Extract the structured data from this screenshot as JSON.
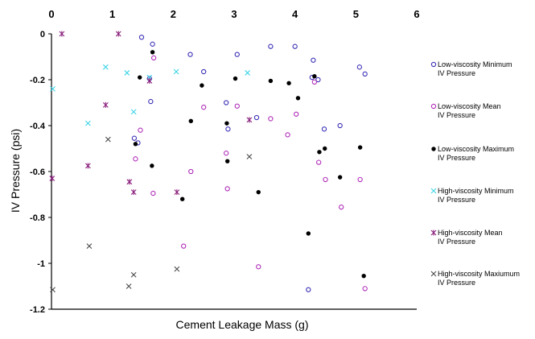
{
  "chart_data": {
    "type": "scatter",
    "title": "",
    "xlabel": "Cement Leakage Mass (g)",
    "ylabel": "IV Pressure (psi)",
    "xlim": [
      0,
      6
    ],
    "ylim": [
      -1.2,
      0
    ],
    "x_ticks": [
      "0",
      "1",
      "2",
      "3",
      "4",
      "5",
      "6"
    ],
    "y_ticks": [
      "0",
      "-0.2",
      "-0.4",
      "-0.6",
      "-0.8",
      "-1",
      "-1.2"
    ],
    "x_ticks_values": [
      0,
      1,
      2,
      3,
      4,
      5,
      6
    ],
    "y_ticks_values": [
      0,
      -0.2,
      -0.4,
      -0.6,
      -0.8,
      -1,
      -1.2
    ],
    "x_axis_position": "top",
    "grid": false,
    "legend_position": "right",
    "series": [
      {
        "name": "Low-viscosity Minimum IV Pressure",
        "marker": "open-circle",
        "color": "#3a2fb5",
        "points": [
          [
            1.48,
            -0.015
          ],
          [
            1.66,
            -0.045
          ],
          [
            2.28,
            -0.09
          ],
          [
            2.5,
            -0.165
          ],
          [
            3.05,
            -0.09
          ],
          [
            3.6,
            -0.055
          ],
          [
            4.0,
            -0.055
          ],
          [
            4.3,
            -0.115
          ],
          [
            4.38,
            -0.2
          ],
          [
            4.28,
            -0.19
          ],
          [
            5.06,
            -0.145
          ],
          [
            5.15,
            -0.175
          ],
          [
            1.61,
            -0.195
          ],
          [
            1.63,
            -0.295
          ],
          [
            2.87,
            -0.3
          ],
          [
            2.9,
            -0.415
          ],
          [
            3.37,
            -0.365
          ],
          [
            4.48,
            -0.415
          ],
          [
            4.74,
            -0.4
          ],
          [
            1.36,
            -0.455
          ],
          [
            1.42,
            -0.475
          ],
          [
            4.22,
            -1.115
          ]
        ]
      },
      {
        "name": "Low-viscosity Mean IV Pressure",
        "marker": "open-circle",
        "color": "#b02ab8",
        "points": [
          [
            1.68,
            -0.105
          ],
          [
            2.5,
            -0.32
          ],
          [
            3.05,
            -0.315
          ],
          [
            4.32,
            -0.21
          ],
          [
            4.02,
            -0.35
          ],
          [
            3.88,
            -0.44
          ],
          [
            3.6,
            -0.37
          ],
          [
            1.46,
            -0.42
          ],
          [
            2.87,
            -0.52
          ],
          [
            4.39,
            -0.56
          ],
          [
            2.29,
            -0.6
          ],
          [
            1.67,
            -0.695
          ],
          [
            2.89,
            -0.675
          ],
          [
            4.5,
            -0.635
          ],
          [
            5.07,
            -0.635
          ],
          [
            4.76,
            -0.755
          ],
          [
            2.17,
            -0.925
          ],
          [
            3.4,
            -1.015
          ],
          [
            5.15,
            -1.11
          ],
          [
            1.38,
            -0.545
          ]
        ]
      },
      {
        "name": "Low-viscosity Maximum IV Pressure",
        "marker": "filled-circle",
        "color": "#000000",
        "points": [
          [
            1.66,
            -0.08
          ],
          [
            1.45,
            -0.19
          ],
          [
            2.47,
            -0.225
          ],
          [
            3.02,
            -0.195
          ],
          [
            3.6,
            -0.205
          ],
          [
            3.9,
            -0.215
          ],
          [
            4.32,
            -0.185
          ],
          [
            4.05,
            -0.28
          ],
          [
            2.29,
            -0.38
          ],
          [
            2.88,
            -0.39
          ],
          [
            1.38,
            -0.48
          ],
          [
            1.65,
            -0.575
          ],
          [
            2.89,
            -0.555
          ],
          [
            4.4,
            -0.515
          ],
          [
            4.49,
            -0.5
          ],
          [
            5.07,
            -0.495
          ],
          [
            4.74,
            -0.625
          ],
          [
            2.15,
            -0.72
          ],
          [
            3.4,
            -0.69
          ],
          [
            4.22,
            -0.87
          ],
          [
            5.13,
            -1.055
          ]
        ]
      },
      {
        "name": "High-viscosity Minimum IV Pressure",
        "marker": "x",
        "color": "#3fd4e8",
        "points": [
          [
            0.02,
            -0.24
          ],
          [
            0.89,
            -0.145
          ],
          [
            1.24,
            -0.17
          ],
          [
            1.61,
            -0.19
          ],
          [
            2.05,
            -0.165
          ],
          [
            3.22,
            -0.17
          ],
          [
            0.6,
            -0.39
          ],
          [
            1.35,
            -0.34
          ]
        ]
      },
      {
        "name": "High-viscosity Mean IV Pressure",
        "marker": "star",
        "color": "#8a1f7c",
        "points": [
          [
            0.17,
            0.0
          ],
          [
            1.1,
            0.0
          ],
          [
            1.61,
            -0.205
          ],
          [
            0.89,
            -0.31
          ],
          [
            0.6,
            -0.575
          ],
          [
            1.28,
            -0.645
          ],
          [
            2.06,
            -0.69
          ],
          [
            1.35,
            -0.69
          ],
          [
            3.25,
            -0.375
          ],
          [
            0.01,
            -0.63
          ]
        ]
      },
      {
        "name": "High-viscosity Maxiumum IV Pressure",
        "marker": "x",
        "color": "#4a4a4a",
        "points": [
          [
            0.93,
            -0.46
          ],
          [
            3.25,
            -0.535
          ],
          [
            0.62,
            -0.925
          ],
          [
            2.06,
            -1.025
          ],
          [
            1.35,
            -1.05
          ],
          [
            1.27,
            -1.1
          ],
          [
            0.02,
            -1.115
          ]
        ]
      }
    ],
    "legend": [
      {
        "line1": "Low-viscosity Minimum",
        "line2": "IV Pressure"
      },
      {
        "line1": "Low-viscosity Mean",
        "line2": "IV Pressure"
      },
      {
        "line1": "Low-viscosity Maximum",
        "line2": "IV Pressure"
      },
      {
        "line1": "High-viscosity Minimum",
        "line2": "IV Pressure"
      },
      {
        "line1": "High-viscosity Mean",
        "line2": "IV Pressure"
      },
      {
        "line1": "High-viscosity Maxiumum",
        "line2": "IV Pressure"
      }
    ]
  }
}
